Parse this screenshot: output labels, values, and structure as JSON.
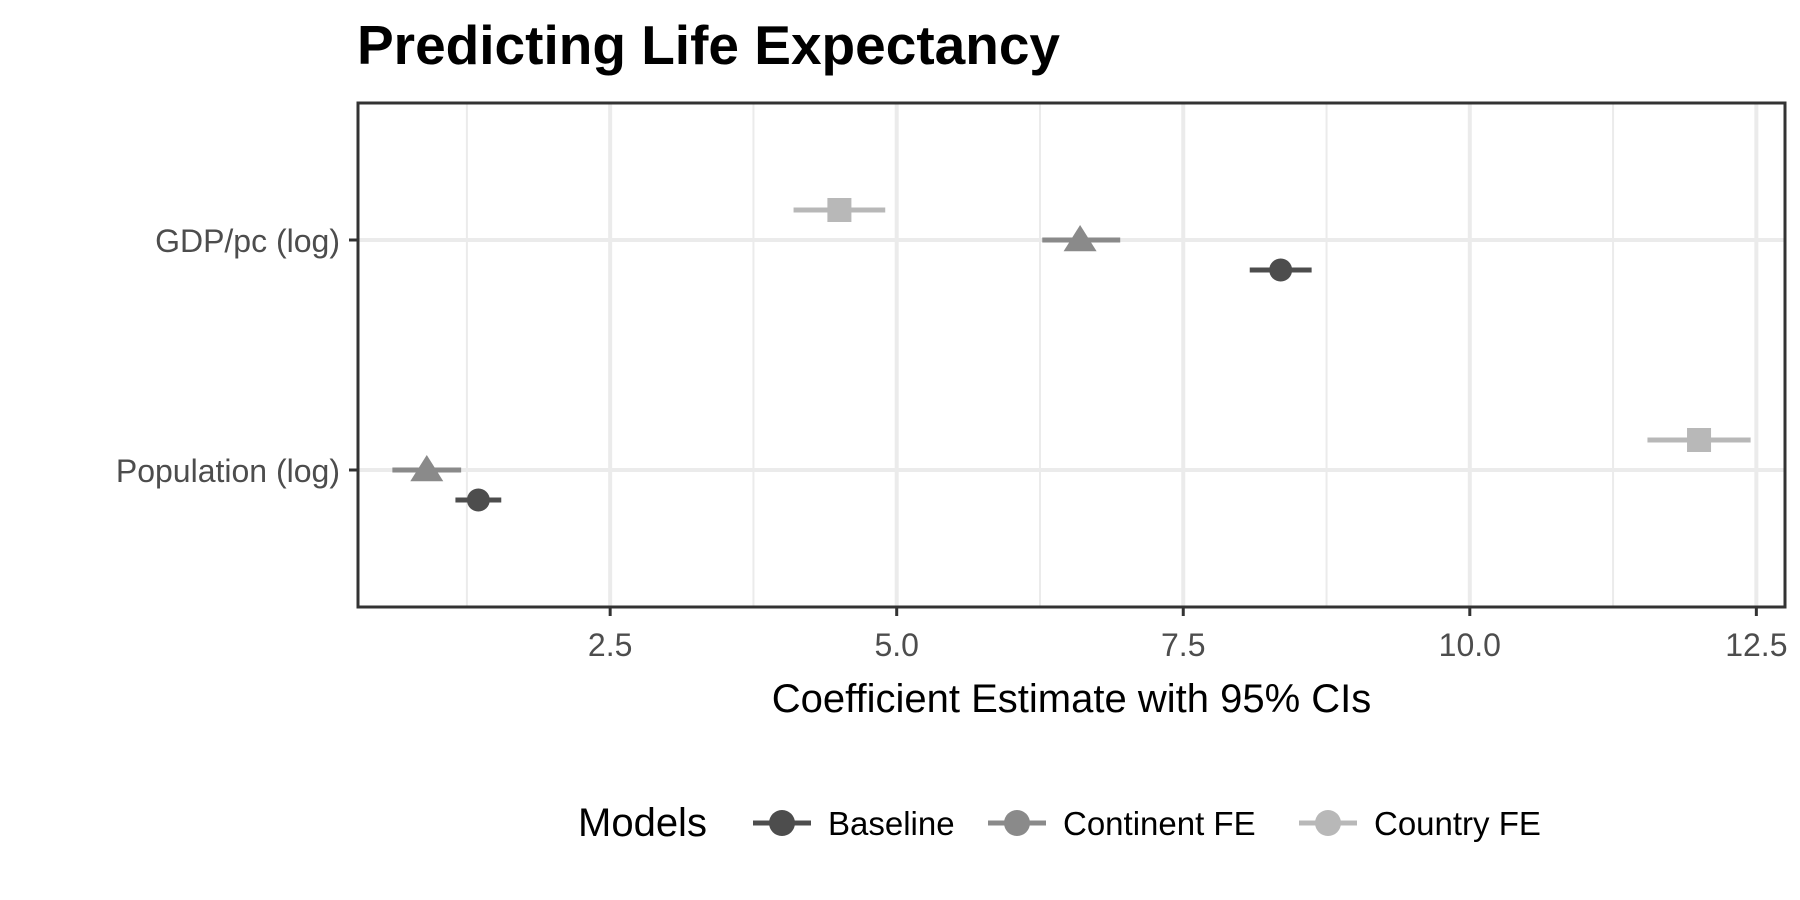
{
  "chart_data": {
    "type": "scatter",
    "title": "Predicting Life Expectancy",
    "xlabel": "Coefficient Estimate with 95% CIs",
    "ylabel": "",
    "xlim": [
      0.3,
      12.75
    ],
    "x_ticks": [
      "2.5",
      "5.0",
      "7.5",
      "10.0",
      "12.5"
    ],
    "x_tick_values": [
      2.5,
      5.0,
      7.5,
      10.0,
      12.5
    ],
    "categories": [
      "GDP/pc (log)",
      "Population (log)"
    ],
    "grid": true,
    "legend": {
      "title": "Models",
      "position": "bottom"
    },
    "series": [
      {
        "name": "Baseline",
        "color": "#4d4d4d",
        "shape": "circle",
        "points": [
          {
            "category": "GDP/pc (log)",
            "estimate": 8.35,
            "ci_low": 8.08,
            "ci_high": 8.62
          },
          {
            "category": "Population (log)",
            "estimate": 1.35,
            "ci_low": 1.15,
            "ci_high": 1.55
          }
        ]
      },
      {
        "name": "Continent FE",
        "color": "#8a8a8a",
        "shape": "triangle",
        "points": [
          {
            "category": "GDP/pc (log)",
            "estimate": 6.6,
            "ci_low": 6.27,
            "ci_high": 6.95
          },
          {
            "category": "Population (log)",
            "estimate": 0.9,
            "ci_low": 0.6,
            "ci_high": 1.2
          }
        ]
      },
      {
        "name": "Country FE",
        "color": "#b8b8b8",
        "shape": "square",
        "points": [
          {
            "category": "GDP/pc (log)",
            "estimate": 4.5,
            "ci_low": 4.1,
            "ci_high": 4.9
          },
          {
            "category": "Population (log)",
            "estimate": 12.0,
            "ci_low": 11.55,
            "ci_high": 12.45
          }
        ]
      }
    ]
  }
}
